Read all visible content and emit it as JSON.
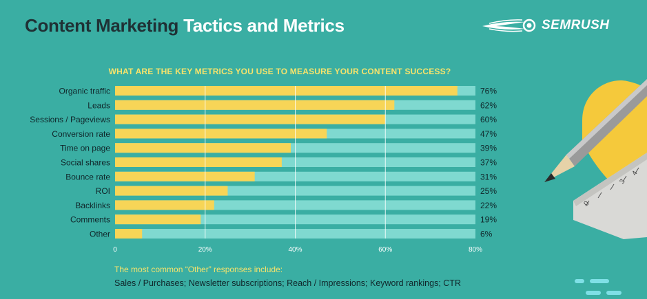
{
  "header": {
    "title_dark": "Content Marketing",
    "title_light": "Tactics and Metrics",
    "brand": "SEMRUSH"
  },
  "colors": {
    "background": "#3aaea3",
    "bar_fill": "#f7d557",
    "bar_track": "#7fd9d0",
    "accent_yellow": "#f7e36b",
    "dark_text": "#1f3135"
  },
  "chart_data": {
    "type": "bar",
    "orientation": "horizontal",
    "title": "WHAT ARE THE KEY METRICS YOU USE TO MEASURE YOUR CONTENT SUCCESS?",
    "categories": [
      "Organic traffic",
      "Leads",
      "Sessions / Pageviews",
      "Conversion rate",
      "Time on page",
      "Social shares",
      "Bounce rate",
      "ROI",
      "Backlinks",
      "Comments",
      "Other"
    ],
    "values": [
      76,
      62,
      60,
      47,
      39,
      37,
      31,
      25,
      22,
      19,
      6
    ],
    "value_labels": [
      "76%",
      "62%",
      "60%",
      "47%",
      "39%",
      "37%",
      "31%",
      "25%",
      "22%",
      "19%",
      "6%"
    ],
    "xlim": [
      0,
      80
    ],
    "xticks": [
      0,
      20,
      40,
      60,
      80
    ],
    "xtick_labels": [
      "0",
      "20%",
      "40%",
      "60%",
      "80%"
    ],
    "xlabel": "",
    "ylabel": "",
    "grid": true
  },
  "notes": {
    "title": "The most common “Other” responses include:",
    "body": "Sales / Purchases; Newsletter subscriptions; Reach / Impressions; Keyword rankings; CTR"
  }
}
